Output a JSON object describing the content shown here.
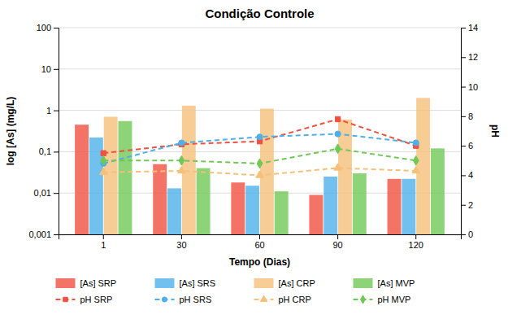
{
  "chart_data": {
    "type": "bar",
    "title": "Condição Controle",
    "x_label": "Tempo (Dias)",
    "y_label": "log [As] (mg/L)",
    "y2_label": "pH",
    "categories": [
      "1",
      "30",
      "60",
      "90",
      "120"
    ],
    "series": [
      {
        "name": "[As] SRP",
        "type": "bar",
        "color": "#f05040",
        "values": [
          0.45,
          0.05,
          0.018,
          0.009,
          0.022
        ]
      },
      {
        "name": "[As] SRS",
        "type": "bar",
        "color": "#4db0e8",
        "values": [
          0.22,
          0.013,
          0.015,
          0.025,
          0.022
        ]
      },
      {
        "name": "[As] CRP",
        "type": "bar",
        "color": "#f5c07a",
        "values": [
          0.7,
          1.3,
          1.1,
          0.6,
          2.0
        ]
      },
      {
        "name": "[As] MVP",
        "type": "bar",
        "color": "#70c855",
        "values": [
          0.55,
          0.04,
          0.011,
          0.03,
          0.12
        ]
      },
      {
        "name": "pH SRP",
        "type": "line",
        "axis": "y2",
        "color": "#f05040",
        "marker": "square",
        "line_style": "dashed",
        "values": [
          5.5,
          6.1,
          6.3,
          7.8,
          6.0
        ]
      },
      {
        "name": "pH SRS",
        "type": "line",
        "axis": "y2",
        "color": "#4db0e8",
        "marker": "circle",
        "line_style": "dashed",
        "values": [
          4.8,
          6.2,
          6.6,
          6.8,
          6.2
        ]
      },
      {
        "name": "pH CRP",
        "type": "line",
        "axis": "y2",
        "color": "#f5c07a",
        "marker": "triangle",
        "line_style": "dashed",
        "values": [
          4.2,
          4.3,
          4.0,
          4.5,
          4.3
        ]
      },
      {
        "name": "pH MVP",
        "type": "line",
        "axis": "y2",
        "color": "#70c855",
        "marker": "diamond",
        "line_style": "dashed",
        "values": [
          5.0,
          5.0,
          4.8,
          5.8,
          5.0
        ]
      }
    ],
    "log": "y",
    "ylim": [
      0.001,
      100
    ],
    "yticks": [
      {
        "value": 0.001,
        "label": "0,001"
      },
      {
        "value": 0.01,
        "label": "0,01"
      },
      {
        "value": 0.1,
        "label": "0,1"
      },
      1,
      10,
      100
    ],
    "y2lim": [
      0,
      14
    ],
    "y2ticks": [
      0,
      2,
      4,
      6,
      8,
      10,
      12,
      14
    ],
    "grid": true,
    "legend": "bottom"
  }
}
